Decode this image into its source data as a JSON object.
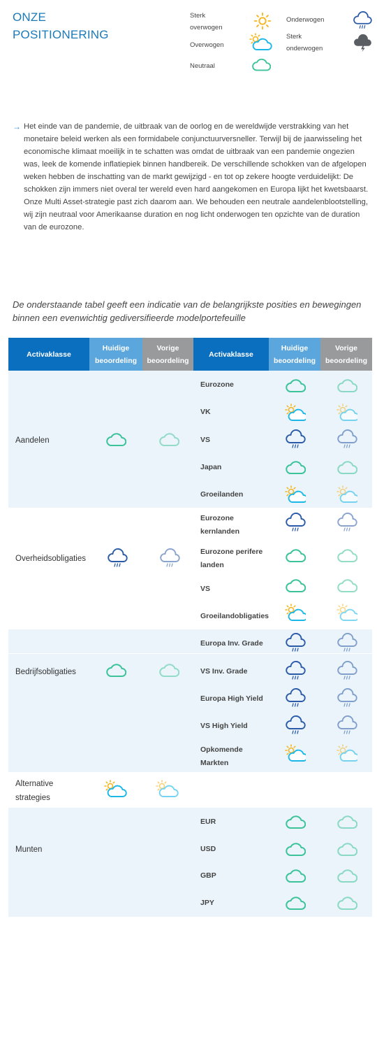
{
  "header": {
    "title_line1": "ONZE",
    "title_line2": "POSITIONERING"
  },
  "legend": {
    "sterk_overwogen_1": "Sterk",
    "sterk_overwogen_2": "overwogen",
    "overwogen": "Overwogen",
    "neutraal": "Neutraal",
    "onderwogen": "Onderwogen",
    "sterk_onderwogen_1": "Sterk",
    "sterk_onderwogen_2": "onderwogen"
  },
  "intro": {
    "arrow": "→",
    "text": "Het einde van de pandemie, de uitbraak van de oorlog en de wereldwijde verstrakking van het monetaire beleid werken als een formidabele conjunctuurversneller. Terwijl bij de jaarwisseling het economische klimaat moeilijk in te schatten was omdat de uitbraak van een pandemie ongezien was, leek de komende inflatiepiek binnen handbereik. De verschillende schokken van de afgelopen weken hebben de inschatting van de markt gewijzigd - en tot op zekere hoogte verduidelijkt: De schokken zijn immers niet overal ter wereld even hard aangekomen en Europa lijkt het kwetsbaarst. Onze Multi Asset-strategie past zich daarom aan. We behouden een neutrale aandelenblootstelling, wij zijn neutraal voor Amerikaanse duration en nog licht onderwogen ten opzichte van de duration van de eurozone."
  },
  "note": "De onderstaande tabel geeft een indicatie van de belangrijkste posities en bewegingen binnen een evenwichtig gediversifieerde modelportefeuille",
  "table": {
    "headers": {
      "activaklasse": "Activaklasse",
      "huidige_1": "Huidige",
      "huidige_2": "beoordeling",
      "vorige_1": "Vorige",
      "vorige_2": "beoordeling"
    },
    "classes": {
      "aandelen": "Aandelen",
      "overheid": "Overheidsobligaties",
      "bedrijf": "Bedrijfsobligaties",
      "alt_1": "Alternative",
      "alt_2": "strategies",
      "munten": "Munten"
    },
    "subs": {
      "eurozone": "Eurozone",
      "vk": "VK",
      "vs": "VS",
      "japan": "Japan",
      "groeilanden": "Groeilanden",
      "ez_kern_1": "Eurozone",
      "ez_kern_2": "kernlanden",
      "ez_perif_1": "Eurozone perifere",
      "ez_perif_2": "landen",
      "vs2": "VS",
      "groeiobl": "Groeilandobligaties",
      "eu_ig": "Europa Inv. Grade",
      "vs_ig": "VS Inv. Grade",
      "eu_hy": "Europa High Yield",
      "vs_hy": "VS High Yield",
      "opk_1": "Opkomende",
      "opk_2": "Markten",
      "eur": "EUR",
      "usd": "USD",
      "gbp": "GBP",
      "jpy": "JPY"
    }
  },
  "colors": {
    "title": "#1a7ab8",
    "header_blue": "#0b6fc0",
    "header_light": "#5aa6dd",
    "header_gray": "#999a9c",
    "row_tint": "#eaf4fa",
    "neutral_cloud": "#3cc39a",
    "sun": "#f5b51b",
    "overweight_cloud": "#1ab7e8",
    "underweight_cloud": "#2a5aa8"
  }
}
